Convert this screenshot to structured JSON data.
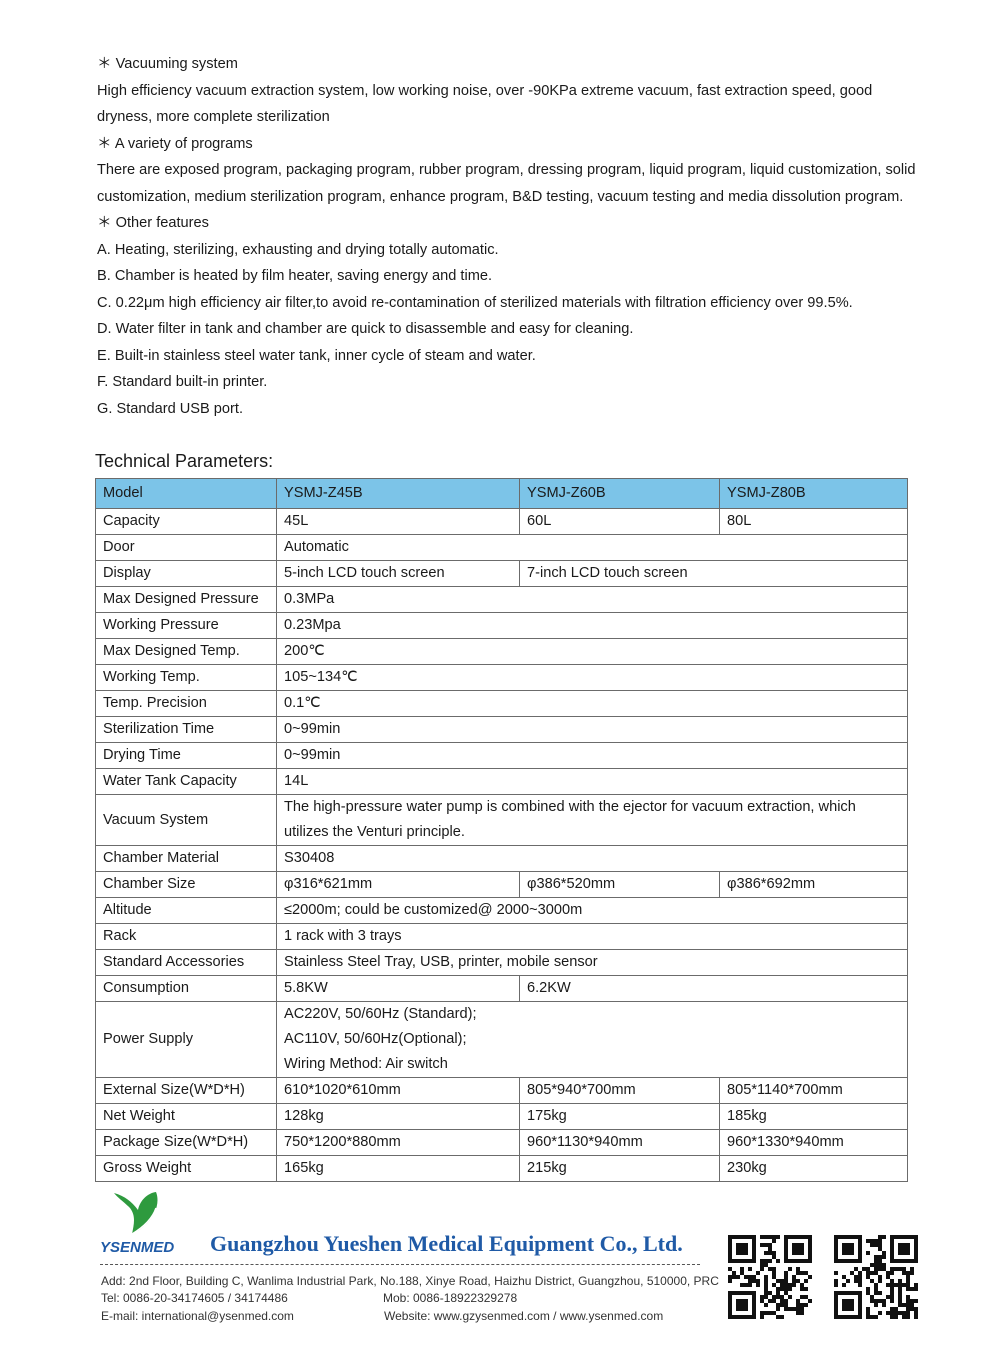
{
  "intro": [
    "＊ Vacuuming system",
    "High efficiency vacuum extraction system, low working noise, over -90KPa extreme vacuum, fast extraction speed, good dryness, more complete sterilization",
    "＊ A variety of programs",
    "There are exposed program, packaging program, rubber program, dressing program, liquid program, liquid customization, solid customization, medium sterilization program, enhance program, B&D testing, vacuum testing and media dissolution program.",
    "＊ Other features",
    "A. Heating, sterilizing, exhausting and drying totally automatic.",
    "B. Chamber is heated by film heater, saving energy and time.",
    "C. 0.22μm high efficiency air filter,to avoid re-contamination of sterilized materials with filtration efficiency over 99.5%.",
    "D. Water filter in tank and chamber are quick to disassemble and easy for cleaning.",
    "E. Built-in stainless steel water tank, inner cycle of steam and water.",
    "F. Standard built-in printer.",
    "G. Standard USB port."
  ],
  "tech_title": "Technical Parameters:",
  "header_color": "#7cc4e8",
  "table": [
    [
      "Model",
      "YSMJ-Z45B",
      "YSMJ-Z60B",
      "YSMJ-Z80B"
    ],
    [
      "Capacity",
      "45L",
      "60L",
      "80L"
    ],
    [
      "Door",
      "Automatic"
    ],
    [
      "Display",
      "5-inch LCD touch screen",
      "7-inch LCD touch screen"
    ],
    [
      "Max Designed Pressure",
      "0.3MPa"
    ],
    [
      "Working Pressure",
      "0.23Mpa"
    ],
    [
      "Max Designed Temp.",
      "200℃"
    ],
    [
      "Working Temp.",
      "105~134℃"
    ],
    [
      "Temp. Precision",
      "0.1℃"
    ],
    [
      "Sterilization Time",
      "0~99min"
    ],
    [
      "Drying Time",
      "0~99min"
    ],
    [
      "Water Tank Capacity",
      "14L"
    ],
    [
      "Vacuum System",
      "The high-pressure water pump is combined with the ejector for vacuum extraction, which utilizes the Venturi principle."
    ],
    [
      "Chamber Material",
      "S30408"
    ],
    [
      "Chamber Size",
      "φ316*621mm",
      "φ386*520mm",
      "φ386*692mm"
    ],
    [
      "Altitude",
      "≤2000m; could be customized@ 2000~3000m"
    ],
    [
      "Rack",
      "1 rack with 3 trays"
    ],
    [
      "Standard Accessories",
      "Stainless Steel Tray, USB, printer, mobile sensor"
    ],
    [
      "Consumption",
      "5.8KW",
      "6.2KW"
    ],
    [
      "Power Supply",
      "AC220V, 50/60Hz (Standard);\nAC110V, 50/60Hz(Optional);\nWiring Method: Air switch"
    ],
    [
      "External Size(W*D*H)",
      "610*1020*610mm",
      "805*940*700mm",
      "805*1140*700mm"
    ],
    [
      "Net Weight",
      "128kg",
      "175kg",
      "185kg"
    ],
    [
      "Package Size(W*D*H)",
      "750*1200*880mm",
      "960*1130*940mm",
      "960*1330*940mm"
    ],
    [
      "Gross Weight",
      "165kg",
      "215kg",
      "230kg"
    ]
  ],
  "footer": {
    "logo_text": "YSENMED",
    "company": "Guangzhou Yueshen Medical Equipment Co., Ltd.",
    "address": "Add: 2nd Floor, Building C, Wanlima Industrial Park, No.188, Xinye Road, Haizhu District, Guangzhou, 510000, PRC",
    "tel": "Tel: 0086-20-34174605 / 34174486",
    "mob": "Mob: 0086-18922329278",
    "email": "E-mail: international@ysenmed.com",
    "website": "Website: www.gzysenmed.com / www.ysenmed.com",
    "brand_green": "#2e9a3e",
    "brand_blue": "#1f5aa6"
  }
}
